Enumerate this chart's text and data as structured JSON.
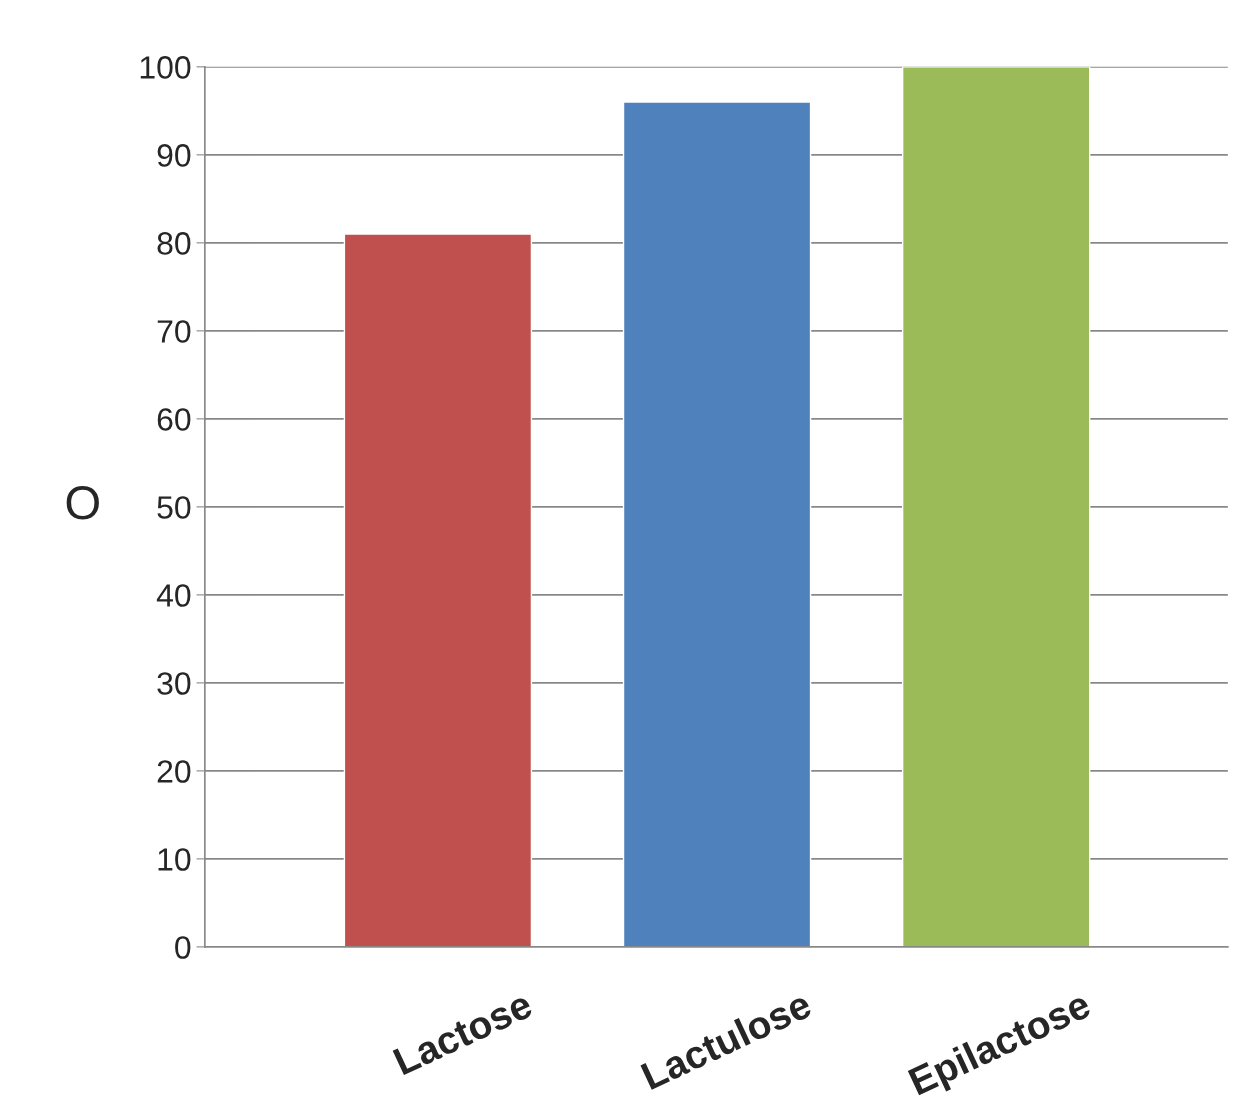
{
  "chart_data": {
    "type": "bar",
    "ylabel": "O",
    "categories": [
      "Lactose",
      "Lactulose",
      "Epilactose"
    ],
    "values": [
      81,
      96,
      100
    ],
    "colors": [
      "#c0504d",
      "#4f81bd",
      "#9bbb59"
    ],
    "ylim": [
      0,
      100
    ],
    "yticks": [
      0,
      10,
      20,
      30,
      40,
      50,
      60,
      70,
      80,
      90,
      100
    ],
    "grid": "y",
    "legend": false
  }
}
